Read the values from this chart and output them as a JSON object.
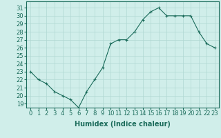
{
  "x": [
    0,
    1,
    2,
    3,
    4,
    5,
    6,
    7,
    8,
    9,
    10,
    11,
    12,
    13,
    14,
    15,
    16,
    17,
    18,
    19,
    20,
    21,
    22,
    23
  ],
  "y": [
    23,
    22,
    21.5,
    20.5,
    20,
    19.5,
    18.5,
    20.5,
    22,
    23.5,
    26.5,
    27,
    27,
    28,
    29.5,
    30.5,
    31,
    30,
    30,
    30,
    30,
    28,
    26.5,
    26
  ],
  "line_color": "#1a6b5a",
  "marker": "+",
  "marker_size": 3,
  "bg_color": "#d0eeea",
  "grid_color": "#b0d8d2",
  "xlabel": "Humidex (Indice chaleur)",
  "xlabel_fontsize": 7,
  "ylabel_ticks": [
    19,
    20,
    21,
    22,
    23,
    24,
    25,
    26,
    27,
    28,
    29,
    30,
    31
  ],
  "xlim": [
    -0.5,
    23.5
  ],
  "ylim": [
    18.5,
    31.8
  ],
  "tick_fontsize": 6,
  "lw": 0.8
}
